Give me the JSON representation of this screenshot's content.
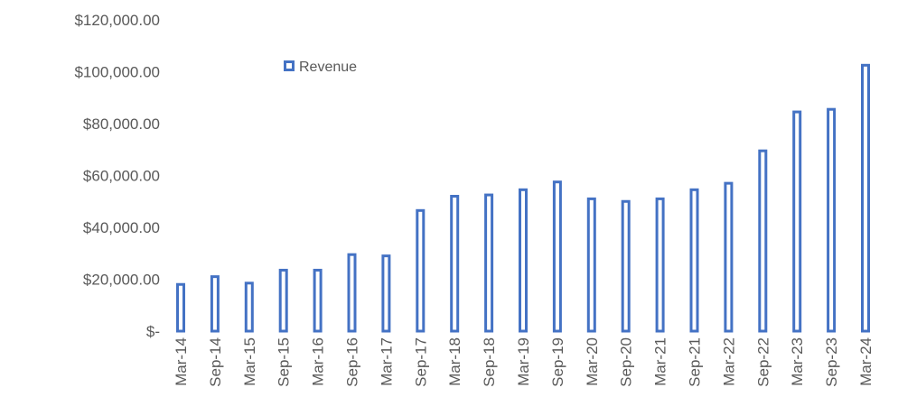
{
  "chart_data": {
    "type": "bar",
    "title": "",
    "xlabel": "",
    "ylabel": "",
    "categories": [
      "Mar-14",
      "Sep-14",
      "Mar-15",
      "Sep-15",
      "Mar-16",
      "Sep-16",
      "Mar-17",
      "Sep-17",
      "Mar-18",
      "Sep-18",
      "Mar-19",
      "Sep-19",
      "Mar-20",
      "Sep-20",
      "Mar-21",
      "Sep-21",
      "Mar-22",
      "Sep-22",
      "Mar-23",
      "Sep-23",
      "Mar-24"
    ],
    "series": [
      {
        "name": "Revenue",
        "color": "#4472C4",
        "style": "outline",
        "values": [
          18000,
          21000,
          18500,
          23500,
          23500,
          29500,
          29000,
          46500,
          52000,
          52500,
          54500,
          57500,
          51000,
          50000,
          51000,
          54500,
          57000,
          69500,
          84500,
          85500,
          102500
        ]
      }
    ],
    "ylim": [
      0,
      120000
    ],
    "yticks": [
      0,
      20000,
      40000,
      60000,
      80000,
      100000,
      120000
    ],
    "ytick_labels": [
      "$-",
      "$20,000.00",
      "$40,000.00",
      "$60,000.00",
      "$80,000.00",
      "$100,000.00",
      "$120,000.00"
    ],
    "xtick_rotation": -90,
    "grid": false,
    "legend": {
      "position": "top-left",
      "entries": [
        "Revenue"
      ]
    }
  }
}
